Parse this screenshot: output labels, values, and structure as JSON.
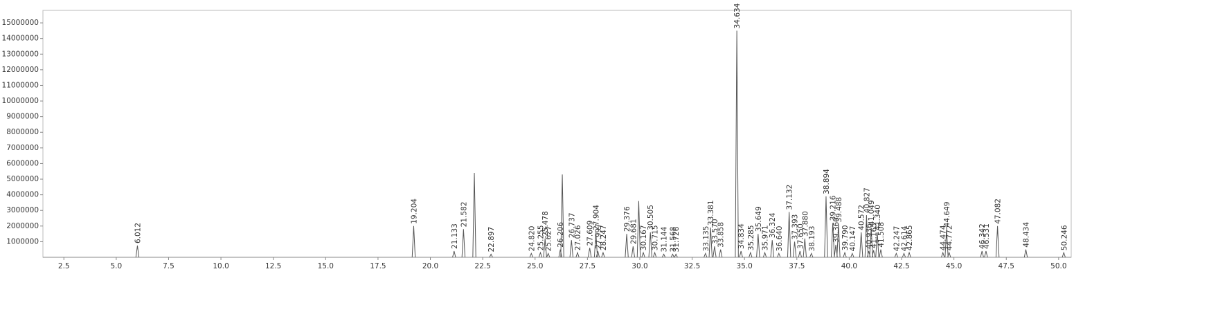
{
  "chart_data": {
    "type": "chromatogram",
    "color": "#555555",
    "xlim": [
      1.5,
      50.6
    ],
    "ylim": [
      0,
      15800000
    ],
    "xticks": [
      2.5,
      {
        "value": 5,
        "label": "5.0"
      },
      7.5,
      {
        "value": 10,
        "label": "10.0"
      },
      12.5,
      {
        "value": 15,
        "label": "15.0"
      },
      17.5,
      {
        "value": 20,
        "label": "20.0"
      },
      22.5,
      {
        "value": 25,
        "label": "25.0"
      },
      27.5,
      {
        "value": 30,
        "label": "30.0"
      },
      32.5,
      {
        "value": 35,
        "label": "35.0"
      },
      37.5,
      {
        "value": 40,
        "label": "40.0"
      },
      42.5,
      {
        "value": 45,
        "label": "45.0"
      },
      47.5,
      {
        "value": 50,
        "label": "50.0"
      }
    ],
    "yticks": [
      1000000,
      2000000,
      3000000,
      4000000,
      5000000,
      6000000,
      7000000,
      8000000,
      9000000,
      10000000,
      11000000,
      12000000,
      13000000,
      14000000,
      15000000
    ],
    "peaks": {
      "x": [
        6.012,
        19.204,
        21.133,
        21.582,
        22.1,
        22.897,
        24.82,
        25.255,
        25.478,
        25.627,
        26.206,
        26.3,
        26.737,
        27.026,
        27.609,
        27.904,
        27.997,
        28.247,
        29.376,
        29.681,
        29.95,
        30.167,
        30.505,
        30.715,
        31.144,
        31.568,
        31.726,
        33.135,
        33.381,
        33.57,
        33.858,
        34.634,
        34.834,
        35.285,
        35.649,
        35.971,
        36.324,
        36.64,
        37.132,
        37.393,
        37.65,
        37.88,
        38.193,
        38.894,
        39.216,
        39.36,
        39.488,
        39.79,
        40.147,
        40.572,
        40.827,
        40.936,
        41.049,
        41.165,
        41.34,
        41.508,
        42.247,
        42.614,
        42.865,
        44.474,
        44.649,
        44.772,
        46.342,
        46.531,
        47.082,
        48.434,
        50.246
      ],
      "x_labels": [
        "6.012",
        "19.204",
        "21.133",
        "21.582",
        null,
        "22.897",
        "24.820",
        "25.255",
        "25.478",
        "25.627",
        "26.206",
        null,
        "26.737",
        "27.026",
        "27.609",
        "27.904",
        "27.997",
        "28.247",
        "29.376",
        "29.681",
        null,
        "30.167",
        "30.505",
        "30.715",
        "31.144",
        "31.568",
        "31.726",
        "33.135",
        "33.381",
        "33.570",
        "33.858",
        "34.634",
        "34.834",
        "35.285",
        "35.649",
        "35.971",
        "36.324",
        "36.640",
        "37.132",
        "37.393",
        "37.650",
        "37.880",
        "38.193",
        "38.894",
        "39.216",
        "39.360",
        "39.488",
        "39.790",
        "40.147",
        "40.572",
        "40.827",
        "40.936",
        "41.049",
        "41.165",
        "41.340",
        "41.508",
        "42.247",
        "42.614",
        "42.865",
        "44.474",
        "44.649",
        "44.772",
        "46.342",
        "46.531",
        "47.082",
        "48.434",
        "50.246"
      ],
      "values": [
        750000,
        2000000,
        400000,
        1800000,
        5400000,
        200000,
        250000,
        300000,
        1200000,
        250000,
        500000,
        5300000,
        1100000,
        300000,
        600000,
        1600000,
        400000,
        300000,
        1500000,
        700000,
        3600000,
        300000,
        1600000,
        300000,
        200000,
        200000,
        200000,
        250000,
        1900000,
        700000,
        500000,
        14500000,
        400000,
        300000,
        1500000,
        300000,
        1100000,
        250000,
        2900000,
        1000000,
        400000,
        1200000,
        250000,
        3900000,
        2200000,
        800000,
        2100000,
        300000,
        250000,
        1600000,
        2700000,
        400000,
        1900000,
        450000,
        1600000,
        500000,
        250000,
        250000,
        300000,
        300000,
        1800000,
        300000,
        400000,
        400000,
        2000000,
        500000,
        300000
      ]
    }
  }
}
